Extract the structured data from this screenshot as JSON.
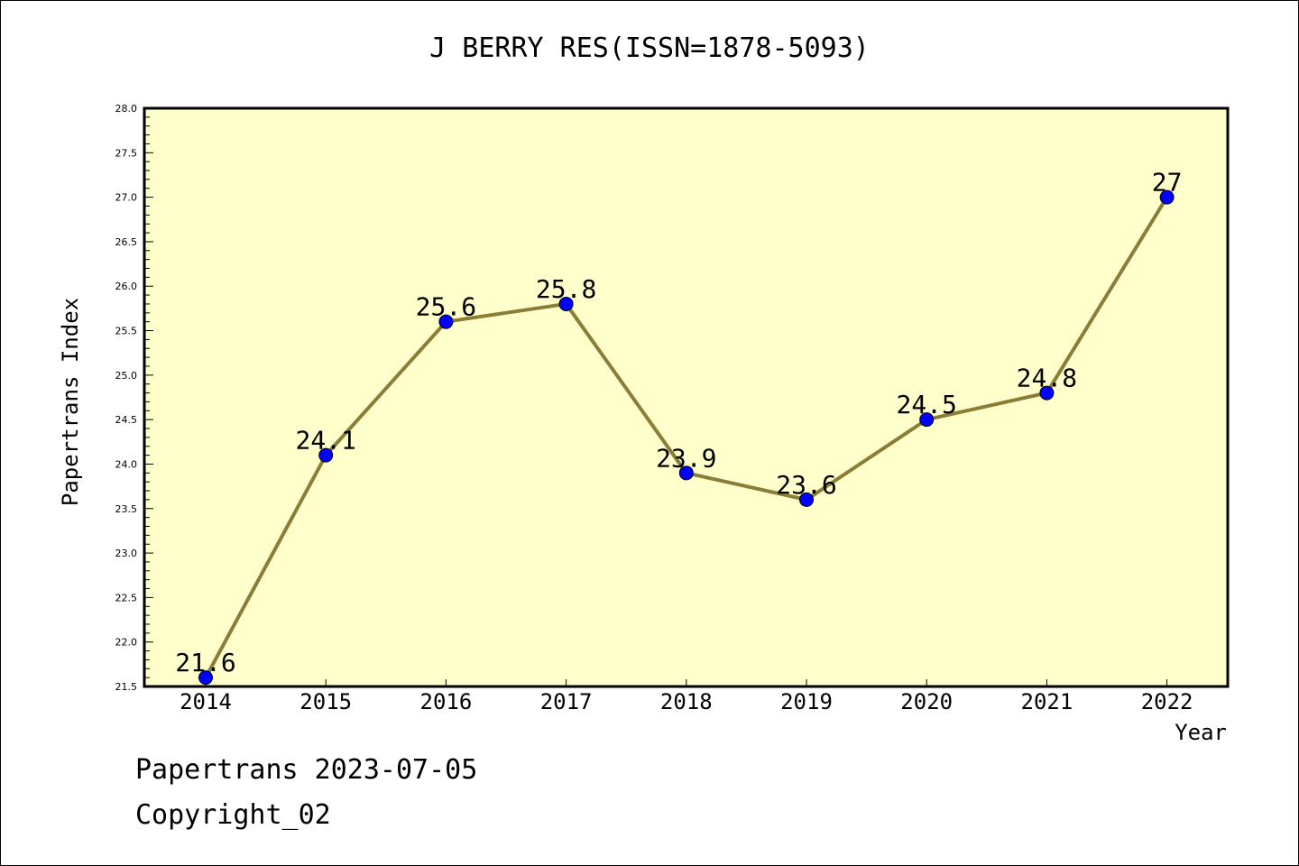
{
  "chart_data": {
    "type": "line",
    "title": "J BERRY RES(ISSN=1878-5093)",
    "xlabel": "Year",
    "ylabel": "Papertrans Index",
    "categories": [
      "2014",
      "2015",
      "2016",
      "2017",
      "2018",
      "2019",
      "2020",
      "2021",
      "2022"
    ],
    "values": [
      21.6,
      24.1,
      25.6,
      25.8,
      23.9,
      23.6,
      24.5,
      24.8,
      27
    ],
    "data_labels": [
      "21.6",
      "24.1",
      "25.6",
      "25.8",
      "23.9",
      "23.6",
      "24.5",
      "24.8",
      "27"
    ],
    "ylim": [
      21.5,
      28.0
    ],
    "yticks": [
      "21.5",
      "22.0",
      "22.5",
      "23.0",
      "23.5",
      "24.0",
      "24.5",
      "25.0",
      "25.5",
      "26.0",
      "26.5",
      "27.0",
      "27.5",
      "28.0"
    ],
    "grid": false,
    "legend": "none",
    "colors": {
      "plot_background": "#ffffcc",
      "line": "#8b7d35",
      "marker": "#0000ff"
    }
  },
  "footer": {
    "line1": "Papertrans 2023-07-05",
    "line2": "Copyright_02"
  }
}
